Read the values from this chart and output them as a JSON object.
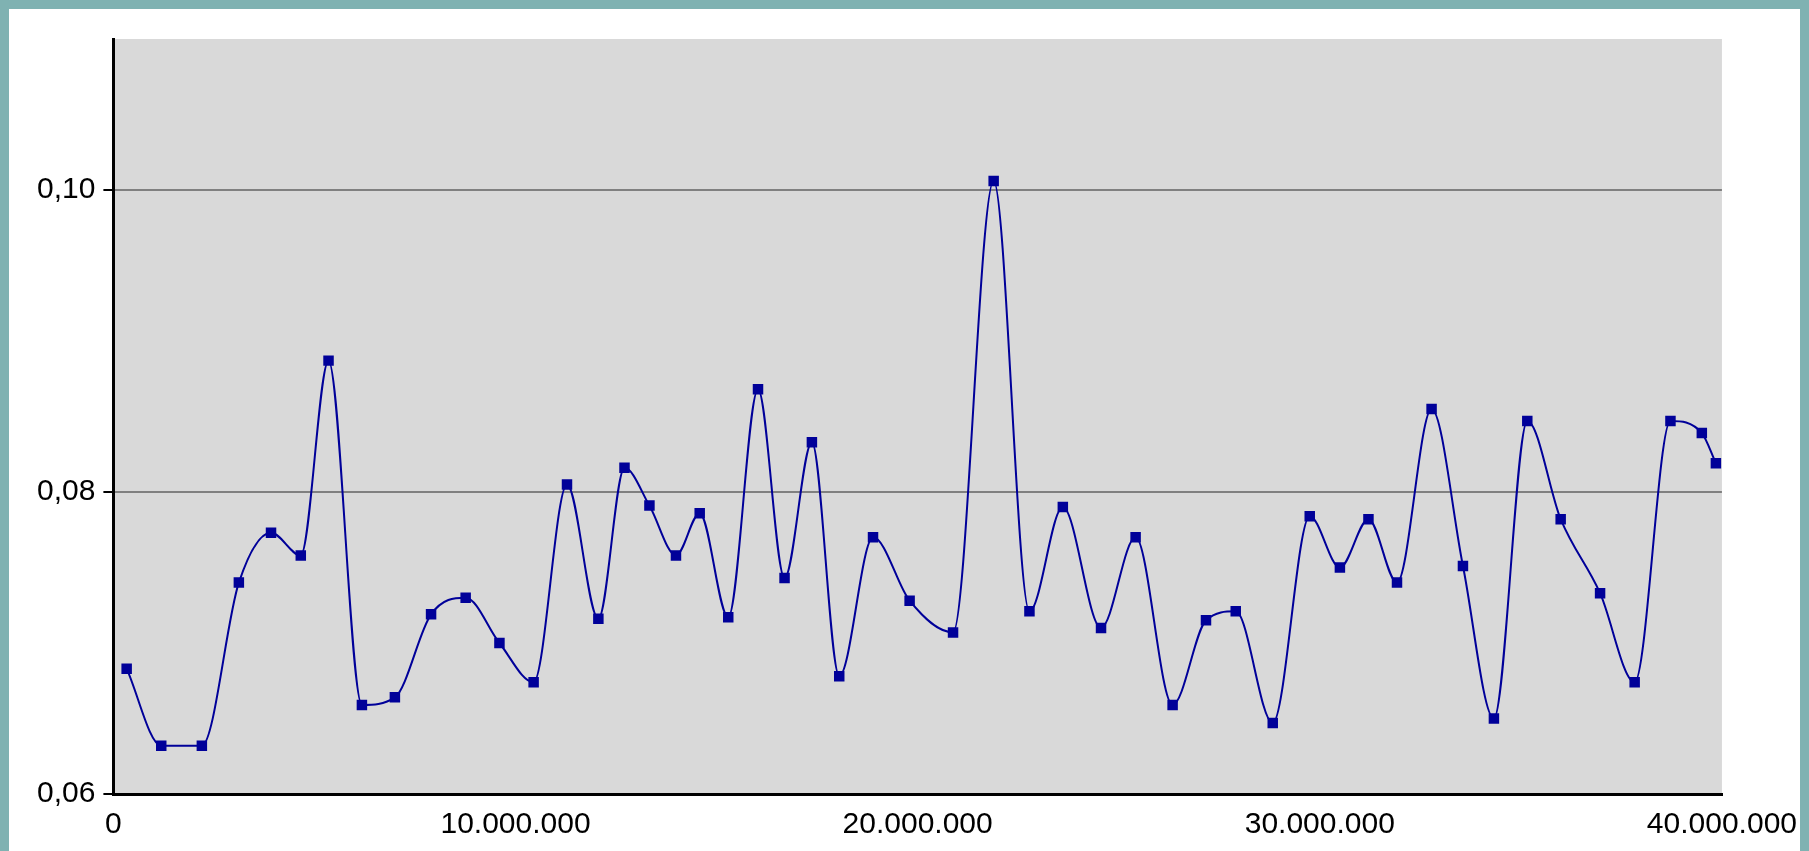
{
  "chart_data": {
    "type": "line",
    "marker": "square",
    "grid": "y",
    "legend": false,
    "xlim": [
      0,
      40000000
    ],
    "xticks": [
      {
        "value": 0,
        "label": "0"
      },
      {
        "value": 10000000,
        "label": "10.000.000"
      },
      {
        "value": 20000000,
        "label": "20.000.000"
      },
      {
        "value": 30000000,
        "label": "30.000.000"
      },
      {
        "value": 40000000,
        "label": "40.000.000"
      }
    ],
    "ylim": [
      0.06,
      0.11
    ],
    "yticks": [
      {
        "value": 0.06,
        "label": "0,06"
      },
      {
        "value": 0.08,
        "label": "0,08"
      },
      {
        "value": 0.1,
        "label": "0,10"
      }
    ],
    "series": [
      {
        "color": "#000099",
        "x": [
          330000,
          1190000,
          2200000,
          3120000,
          3920000,
          4660000,
          5350000,
          6180000,
          7000000,
          7900000,
          8760000,
          9600000,
          10450000,
          11280000,
          12060000,
          12710000,
          13330000,
          13990000,
          14580000,
          15290000,
          16030000,
          16690000,
          17370000,
          18050000,
          18890000,
          19800000,
          20880000,
          21890000,
          22780000,
          23610000,
          24560000,
          25420000,
          26340000,
          27170000,
          27910000,
          28830000,
          29750000,
          30500000,
          31210000,
          31920000,
          32780000,
          33560000,
          34330000,
          35160000,
          35990000,
          36970000,
          37830000,
          38720000,
          39500000,
          39850000
        ],
        "values": [
          0.0683,
          0.0632,
          0.0632,
          0.074,
          0.0773,
          0.0758,
          0.0887,
          0.0659,
          0.0664,
          0.0719,
          0.073,
          0.07,
          0.0674,
          0.0805,
          0.0716,
          0.0816,
          0.0791,
          0.0758,
          0.0786,
          0.0717,
          0.0868,
          0.0743,
          0.0833,
          0.0678,
          0.077,
          0.0728,
          0.0707,
          0.1006,
          0.0721,
          0.079,
          0.071,
          0.077,
          0.0659,
          0.0715,
          0.0721,
          0.0647,
          0.0784,
          0.075,
          0.0782,
          0.074,
          0.0855,
          0.0751,
          0.065,
          0.0847,
          0.0782,
          0.0733,
          0.0674,
          0.0847,
          0.0839,
          0.0819
        ]
      }
    ]
  }
}
